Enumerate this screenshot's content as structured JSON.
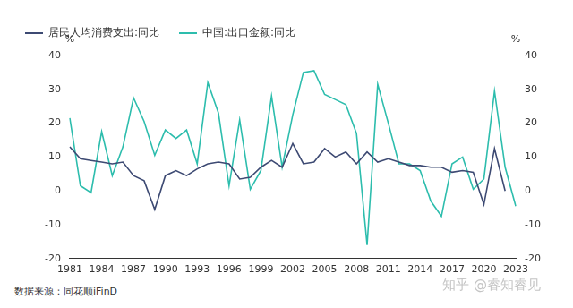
{
  "chart_data": {
    "type": "line",
    "categories": [
      "1981",
      null,
      null,
      "1984",
      null,
      null,
      "1987",
      null,
      null,
      "1990",
      null,
      null,
      "1993",
      null,
      null,
      "1996",
      null,
      null,
      "1999",
      null,
      null,
      "2002",
      null,
      null,
      "2005",
      null,
      null,
      "2008",
      null,
      null,
      "2011",
      null,
      null,
      "2014",
      null,
      null,
      "2017",
      null,
      null,
      "2020",
      null,
      null,
      "2023"
    ],
    "series": [
      {
        "name": "居民人均消费支出:同比",
        "color": "#3d4a73",
        "axis": "y",
        "values": [
          13,
          9.5,
          9,
          8.5,
          8,
          8.5,
          4.5,
          3,
          -5.5,
          4.5,
          6,
          4.5,
          6.5,
          8,
          8.5,
          8,
          3.5,
          4,
          7,
          9,
          7,
          14,
          8,
          8.5,
          12.5,
          10,
          11.5,
          8,
          11.5,
          8.5,
          9.5,
          8.5,
          7.5,
          7.5,
          7,
          7,
          5.5,
          6,
          5.5,
          -4,
          12.5,
          0,
          null
        ]
      },
      {
        "name": "中国:出口金额:同比",
        "color": "#2dbdad",
        "axis": "y2",
        "values": [
          21.5,
          1.5,
          -0.5,
          17.5,
          4.5,
          13,
          27.5,
          20.5,
          10.5,
          18,
          15.5,
          18,
          8,
          32,
          23,
          1.5,
          21,
          0.5,
          6,
          28,
          7,
          22.5,
          35,
          35.5,
          28.5,
          27,
          25.5,
          17,
          -16,
          31.5,
          20,
          8,
          8,
          6,
          -3,
          -7.5,
          8,
          10,
          0.5,
          3.5,
          29.5,
          7,
          -4.5
        ]
      }
    ],
    "ylabel": "%",
    "y2label": "%",
    "ylim": [
      -20,
      40
    ],
    "yticks": [
      -20,
      -10,
      0,
      10,
      20,
      30,
      40
    ],
    "y2lim": [
      -20,
      40
    ],
    "y2ticks": [
      -20,
      -10,
      0,
      10,
      20,
      30,
      40
    ],
    "grid": false,
    "legend": "top-left",
    "source": "数据来源：同花顺iFinD",
    "watermark": "知乎 @睿知睿见"
  }
}
